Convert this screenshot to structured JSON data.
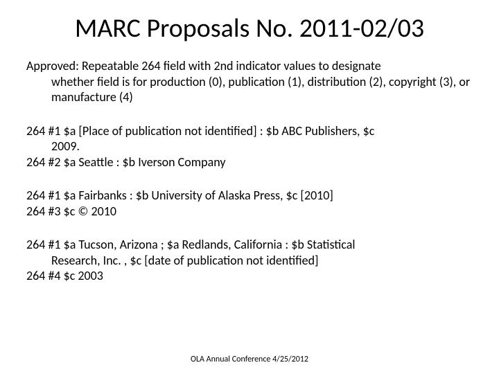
{
  "colors": {
    "background": "#ffffff",
    "text": "#000000"
  },
  "title": "MARC Proposals No. 2011-02/03",
  "paragraphs": {
    "approved_l1": "Approved: Repeatable 264 field with 2nd indicator values to designate",
    "approved_l2": "whether field is for production (0), publication (1), distribution (2), copyright (3), or manufacture (4)",
    "ex1_l1": "264 #1 $a [Place of publication not identified] : $b ABC Publishers, $c",
    "ex1_l2": "2009.",
    "ex1_l3": "264 #2 $a Seattle : $b Iverson Company",
    "ex2_l1": "264 #1 $a Fairbanks : $b University of Alaska Press, $c [2010]",
    "ex2_l2": "264 #3 $c © 2010",
    "ex3_l1": "264 #1 $a Tucson, Arizona ; $a Redlands, California : $b Statistical",
    "ex3_l2": "Research, Inc. , $c [date of publication not identified]",
    "ex3_l3": "264 #4 $c 2003"
  },
  "footer": "OLA Annual Conference 4/25/2012",
  "typography": {
    "title_fontsize": 38,
    "body_fontsize": 18,
    "footer_fontsize": 12,
    "font_family": "Calibri"
  }
}
